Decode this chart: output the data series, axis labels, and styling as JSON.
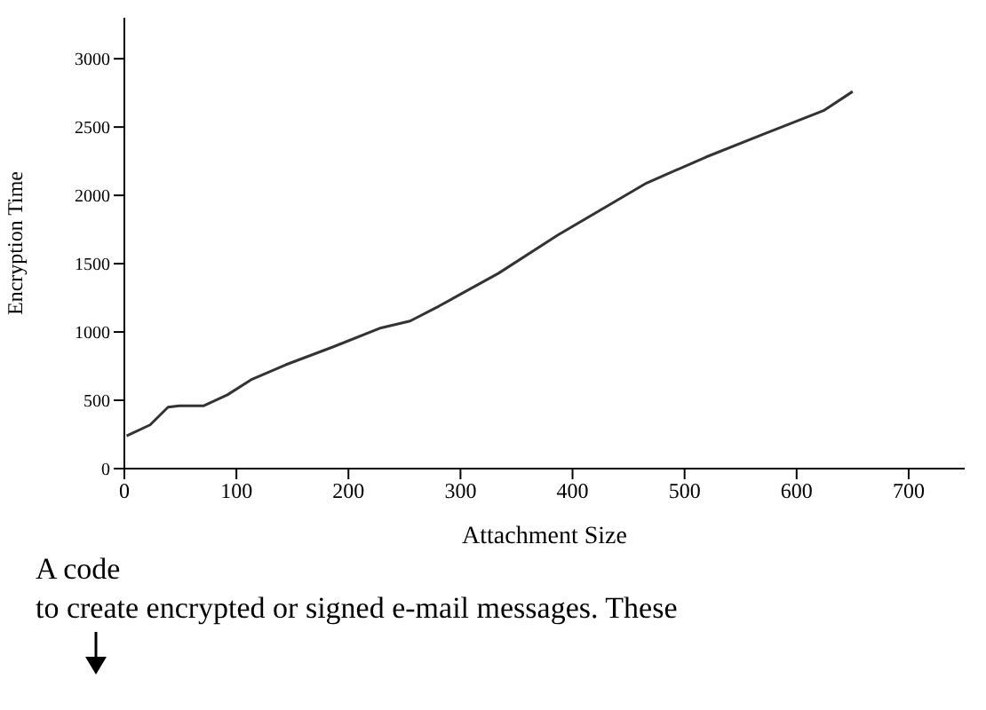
{
  "chart_data": {
    "type": "line",
    "xlabel": "Attachment Size",
    "ylabel": "Encryption Time",
    "annotations": [
      "A code",
      "to create encrypted or signed e-mail messages. These"
    ],
    "x": [
      2,
      23,
      39,
      49,
      71,
      92,
      113,
      144,
      186,
      229,
      255,
      281,
      334,
      387,
      439,
      466,
      519,
      571,
      624,
      650
    ],
    "series": [
      {
        "color": "#333333",
        "values": [
          240,
          320,
          450,
          460,
          460,
          540,
          650,
          760,
          890,
          1030,
          1080,
          1190,
          1430,
          1710,
          1960,
          2090,
          2280,
          2450,
          2620,
          2760
        ]
      }
    ],
    "xlim": [
      0,
      750
    ],
    "xticks": [
      0,
      100,
      200,
      300,
      400,
      500,
      600,
      700
    ],
    "ylim": [
      0,
      3300
    ],
    "yticks": [
      0,
      500,
      1000,
      1500,
      2000,
      2500,
      3000
    ]
  }
}
